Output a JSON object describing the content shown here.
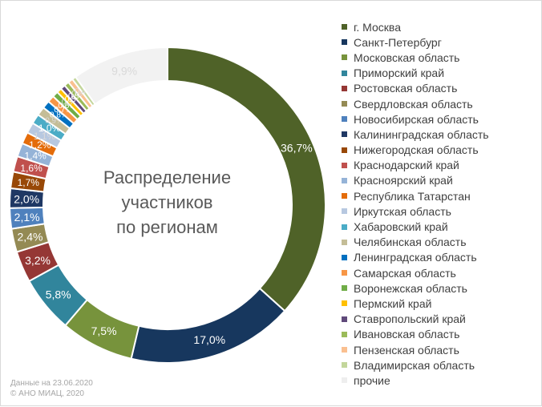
{
  "chart_data": {
    "type": "pie",
    "donut": true,
    "title_lines": [
      "Распределение",
      "участников",
      "по регионам"
    ],
    "legend_position": "right",
    "slices": [
      {
        "label": "г. Москва",
        "value": 36.7,
        "display": "36,7%",
        "color": "#4f6228"
      },
      {
        "label": "Санкт-Петербург",
        "value": 17.0,
        "display": "17,0%",
        "color": "#17375e"
      },
      {
        "label": "Московская область",
        "value": 7.5,
        "display": "7,5%",
        "color": "#77933c"
      },
      {
        "label": "Приморский край",
        "value": 5.8,
        "display": "5,8%",
        "color": "#31859c"
      },
      {
        "label": "Ростовская область",
        "value": 3.2,
        "display": "3,2%",
        "color": "#953735"
      },
      {
        "label": "Свердловская область",
        "value": 2.4,
        "display": "2,4%",
        "color": "#948a54"
      },
      {
        "label": "Новосибирская область",
        "value": 2.1,
        "display": "2,1%",
        "color": "#4f81bd"
      },
      {
        "label": "Калининградская область",
        "value": 2.0,
        "display": "2,0%",
        "color": "#1f3864"
      },
      {
        "label": "Нижегородская область",
        "value": 1.7,
        "display": "1,7%",
        "color": "#984807"
      },
      {
        "label": "Краснодарский край",
        "value": 1.6,
        "display": "1,6%",
        "color": "#c0504d"
      },
      {
        "label": "Красноярский край",
        "value": 1.4,
        "display": "1,4%",
        "color": "#95b3d7"
      },
      {
        "label": "Республика Татарстан",
        "value": 1.2,
        "display": "1,2%",
        "color": "#e46c0a"
      },
      {
        "label": "Иркутская область",
        "value": 1.1,
        "display": "1,1%",
        "color": "#b7c8e0"
      },
      {
        "label": "Хабаровский край",
        "value": 1.0,
        "display": "1,0%",
        "color": "#4bacc6"
      },
      {
        "label": "Челябинская область",
        "value": 0.9,
        "display": "0,9%",
        "color": "#c4bd97"
      },
      {
        "label": "Ленинградская область",
        "value": 0.8,
        "display": "0,8%",
        "color": "#0070c0"
      },
      {
        "label": "Самарская область",
        "value": 0.7,
        "display": "0,7%",
        "color": "#f79646"
      },
      {
        "label": "Воронежская область",
        "value": 0.6,
        "display": "0,6%",
        "color": "#70ad47"
      },
      {
        "label": "Пермский край",
        "value": 0.5,
        "display": "0,5%",
        "color": "#ffc000"
      },
      {
        "label": "Ставропольский край",
        "value": 0.5,
        "display": "0,5%",
        "color": "#604a7b"
      },
      {
        "label": "Ивановская область",
        "value": 0.5,
        "display": "0,5%",
        "color": "#9bbb59"
      },
      {
        "label": "Пензенская область",
        "value": 0.5,
        "display": "0,5%",
        "color": "#fac090"
      },
      {
        "label": "Владимирская область",
        "value": 0.4,
        "display": "0,4%",
        "color": "#c3d69b"
      },
      {
        "label": "прочие",
        "value": 9.9,
        "display": "9,9%",
        "color": "#f2f2f2"
      }
    ]
  },
  "footnote": {
    "line1": "Данные на 23.06.2020",
    "line2": "© АНО МИАЦ, 2020"
  }
}
